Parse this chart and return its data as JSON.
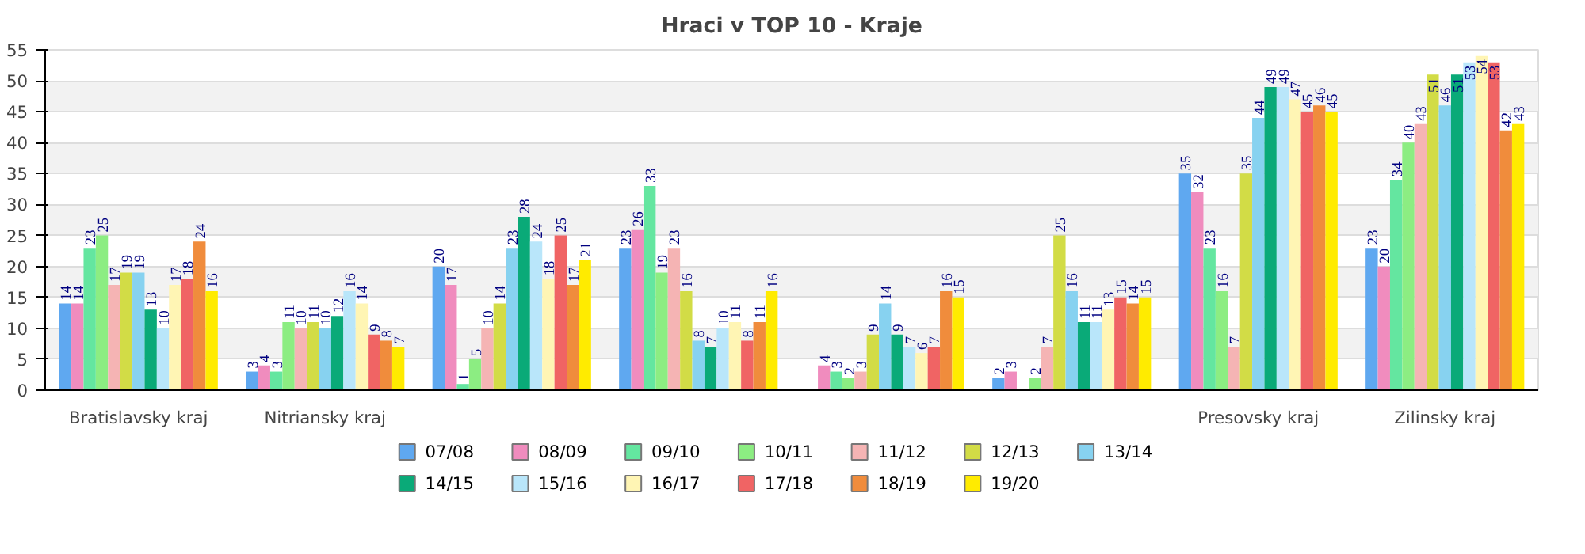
{
  "chart_data": {
    "type": "bar",
    "title": "Hraci v TOP 10 - Kraje",
    "categories": [
      "Bratislavsky kraj",
      "Nitriansky kraj",
      null,
      null,
      null,
      null,
      "Presovsky kraj",
      "Zilinsky kraj"
    ],
    "ylim": [
      0,
      55
    ],
    "yticks": [
      0,
      5,
      10,
      15,
      20,
      25,
      30,
      35,
      40,
      45,
      50,
      55
    ],
    "grid": "y",
    "legend": "bottom",
    "data_labels": true,
    "series": [
      {
        "name": "07/08",
        "color": "#5fa8f0",
        "values": [
          14,
          3,
          20,
          23,
          null,
          2,
          35,
          23
        ]
      },
      {
        "name": "08/09",
        "color": "#f08cbe",
        "values": [
          14,
          4,
          17,
          26,
          4,
          3,
          32,
          20
        ]
      },
      {
        "name": "09/10",
        "color": "#64e6a0",
        "values": [
          23,
          3,
          1,
          33,
          3,
          null,
          23,
          34
        ]
      },
      {
        "name": "10/11",
        "color": "#8ced82",
        "values": [
          25,
          11,
          5,
          19,
          2,
          2,
          16,
          40
        ]
      },
      {
        "name": "11/12",
        "color": "#f5b4b4",
        "values": [
          17,
          10,
          10,
          23,
          3,
          7,
          7,
          43
        ]
      },
      {
        "name": "12/13",
        "color": "#d2dc46",
        "values": [
          19,
          11,
          14,
          16,
          9,
          25,
          35,
          51
        ]
      },
      {
        "name": "13/14",
        "color": "#87d2f0",
        "values": [
          19,
          10,
          23,
          8,
          14,
          16,
          44,
          46
        ]
      },
      {
        "name": "14/15",
        "color": "#0aaa78",
        "values": [
          13,
          12,
          28,
          7,
          9,
          11,
          49,
          51
        ]
      },
      {
        "name": "15/16",
        "color": "#b9e6fa",
        "values": [
          10,
          16,
          24,
          10,
          7,
          11,
          49,
          53
        ]
      },
      {
        "name": "16/17",
        "color": "#fff5b4",
        "values": [
          17,
          14,
          18,
          11,
          6,
          13,
          47,
          54
        ]
      },
      {
        "name": "17/18",
        "color": "#f06464",
        "values": [
          18,
          9,
          25,
          8,
          7,
          15,
          45,
          53
        ]
      },
      {
        "name": "18/19",
        "color": "#f08c3c",
        "values": [
          24,
          8,
          17,
          11,
          16,
          14,
          46,
          42
        ]
      },
      {
        "name": "19/20",
        "color": "#ffeb00",
        "values": [
          16,
          7,
          21,
          16,
          15,
          15,
          45,
          43
        ]
      }
    ]
  }
}
